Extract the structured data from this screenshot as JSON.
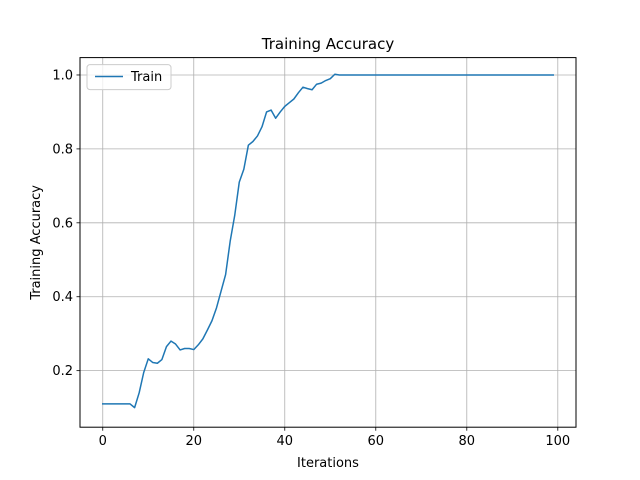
{
  "chart_data": {
    "type": "line",
    "title": "Training Accuracy",
    "xlabel": "Iterations",
    "ylabel": "Training Accuracy",
    "xlim": [
      -5,
      104
    ],
    "ylim": [
      0.047,
      1.047
    ],
    "xticks": [
      0,
      20,
      40,
      60,
      80,
      100
    ],
    "yticks": [
      0.2,
      0.4,
      0.6,
      0.8,
      1.0
    ],
    "xtick_labels": [
      "0",
      "20",
      "40",
      "60",
      "80",
      "100"
    ],
    "ytick_labels": [
      "0.2",
      "0.4",
      "0.6",
      "0.8",
      "1.0"
    ],
    "grid": true,
    "legend_position": "upper-left",
    "series": [
      {
        "name": "Train",
        "color": "#1f77b4",
        "x": [
          0,
          1,
          2,
          3,
          4,
          5,
          6,
          7,
          8,
          9,
          10,
          11,
          12,
          13,
          14,
          15,
          16,
          17,
          18,
          19,
          20,
          21,
          22,
          23,
          24,
          25,
          26,
          27,
          28,
          29,
          30,
          31,
          32,
          33,
          34,
          35,
          36,
          37,
          38,
          39,
          40,
          41,
          42,
          43,
          44,
          45,
          46,
          47,
          48,
          49,
          50,
          51,
          52,
          53,
          54,
          55,
          56,
          57,
          58,
          59,
          60,
          61,
          62,
          63,
          64,
          65,
          66,
          67,
          68,
          69,
          70,
          71,
          72,
          73,
          74,
          75,
          76,
          77,
          78,
          79,
          80,
          81,
          82,
          83,
          84,
          85,
          86,
          87,
          88,
          89,
          90,
          91,
          92,
          93,
          94,
          95,
          96,
          97,
          98,
          99
        ],
        "values": [
          0.11,
          0.11,
          0.11,
          0.11,
          0.11,
          0.11,
          0.11,
          0.1,
          0.14,
          0.195,
          0.232,
          0.222,
          0.22,
          0.23,
          0.265,
          0.28,
          0.272,
          0.256,
          0.26,
          0.26,
          0.257,
          0.27,
          0.286,
          0.31,
          0.335,
          0.37,
          0.415,
          0.46,
          0.55,
          0.62,
          0.71,
          0.745,
          0.81,
          0.82,
          0.835,
          0.86,
          0.9,
          0.905,
          0.883,
          0.9,
          0.915,
          0.925,
          0.935,
          0.952,
          0.967,
          0.963,
          0.96,
          0.975,
          0.978,
          0.985,
          0.99,
          1.002,
          1.0,
          1.0,
          1.0,
          1.0,
          1.0,
          1.0,
          1.0,
          1.0,
          1.0,
          1.0,
          1.0,
          1.0,
          1.0,
          1.0,
          1.0,
          1.0,
          1.0,
          1.0,
          1.0,
          1.0,
          1.0,
          1.0,
          1.0,
          1.0,
          1.0,
          1.0,
          1.0,
          1.0,
          1.0,
          1.0,
          1.0,
          1.0,
          1.0,
          1.0,
          1.0,
          1.0,
          1.0,
          1.0,
          1.0,
          1.0,
          1.0,
          1.0,
          1.0,
          1.0,
          1.0,
          1.0,
          1.0,
          1.0
        ]
      }
    ]
  }
}
